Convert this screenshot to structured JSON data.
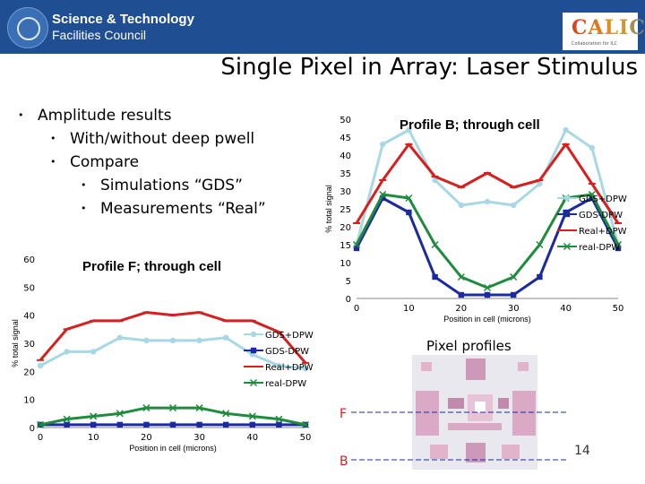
{
  "header": {
    "org_line1": "Science & Technology",
    "org_line2": "Facilities Council",
    "calice": "CALICE",
    "calice_sub": "Collaboration for ILC"
  },
  "title": "Single Pixel in Array: Laser Stimulus",
  "bullets": [
    {
      "level": 1,
      "text": "Amplitude results"
    },
    {
      "level": 2,
      "text": "With/without deep pwell"
    },
    {
      "level": 2,
      "text": "Compare"
    },
    {
      "level": 3,
      "text": "Simulations “GDS”"
    },
    {
      "level": 3,
      "text": "Measurements “Real”"
    }
  ],
  "pixel_profiles": {
    "label": "Pixel profiles",
    "marker_f": "F",
    "marker_b": "B"
  },
  "page_number": "14",
  "chart_data": [
    {
      "type": "line",
      "title": "Profile B; through cell",
      "xlabel": "Position in cell (microns)",
      "ylabel": "% total signal",
      "xlim": [
        0,
        50
      ],
      "ylim": [
        0,
        50
      ],
      "xticks": [
        0,
        10,
        20,
        30,
        40,
        50
      ],
      "yticks": [
        0,
        5,
        10,
        15,
        20,
        25,
        30,
        35,
        40,
        45,
        50
      ],
      "x": [
        0,
        5,
        10,
        15,
        20,
        25,
        30,
        35,
        40,
        45,
        50
      ],
      "legend_position": "right",
      "series": [
        {
          "name": "GDS+DPW",
          "color": "#a8d8e4",
          "marker": "circle",
          "values": [
            15,
            43,
            47,
            33,
            26,
            27,
            26,
            32,
            47,
            42,
            15
          ]
        },
        {
          "name": "GDS-DPW",
          "color": "#1c2aa0",
          "marker": "square",
          "values": [
            14,
            28,
            24,
            6,
            1,
            1,
            1,
            6,
            24,
            28,
            14
          ]
        },
        {
          "name": "Real+DPW",
          "color": "#d62020",
          "marker": "dash",
          "values": [
            21,
            33,
            43,
            34,
            31,
            35,
            31,
            33,
            43,
            32,
            21
          ]
        },
        {
          "name": "real-DPW",
          "color": "#1e8c3c",
          "marker": "x",
          "values": [
            15,
            29,
            28,
            15,
            6,
            3,
            6,
            15,
            28,
            29,
            15
          ]
        }
      ]
    },
    {
      "type": "line",
      "title": "Profile F; through cell",
      "xlabel": "Position in cell (microns)",
      "ylabel": "% total signal",
      "xlim": [
        0,
        50
      ],
      "ylim": [
        0,
        60
      ],
      "xticks": [
        0,
        10,
        20,
        30,
        40,
        50
      ],
      "yticks": [
        0,
        10,
        20,
        30,
        40,
        50,
        60
      ],
      "x": [
        0,
        5,
        10,
        15,
        20,
        25,
        30,
        35,
        40,
        45,
        50
      ],
      "legend_position": "right",
      "series": [
        {
          "name": "GDS+DPW",
          "color": "#a8d8e4",
          "marker": "circle",
          "values": [
            22,
            27,
            27,
            32,
            31,
            31,
            31,
            32,
            26,
            22,
            21
          ]
        },
        {
          "name": "GDS-DPW",
          "color": "#1c2aa0",
          "marker": "square",
          "values": [
            1,
            1,
            1,
            1,
            1,
            1,
            1,
            1,
            1,
            1,
            1
          ]
        },
        {
          "name": "Real+DPW",
          "color": "#d62020",
          "marker": "dash",
          "values": [
            24,
            35,
            38,
            38,
            41,
            40,
            41,
            38,
            38,
            34,
            23
          ]
        },
        {
          "name": "real-DPW",
          "color": "#1e8c3c",
          "marker": "x",
          "values": [
            1,
            3,
            4,
            5,
            7,
            7,
            7,
            5,
            4,
            3,
            1
          ]
        }
      ]
    }
  ]
}
